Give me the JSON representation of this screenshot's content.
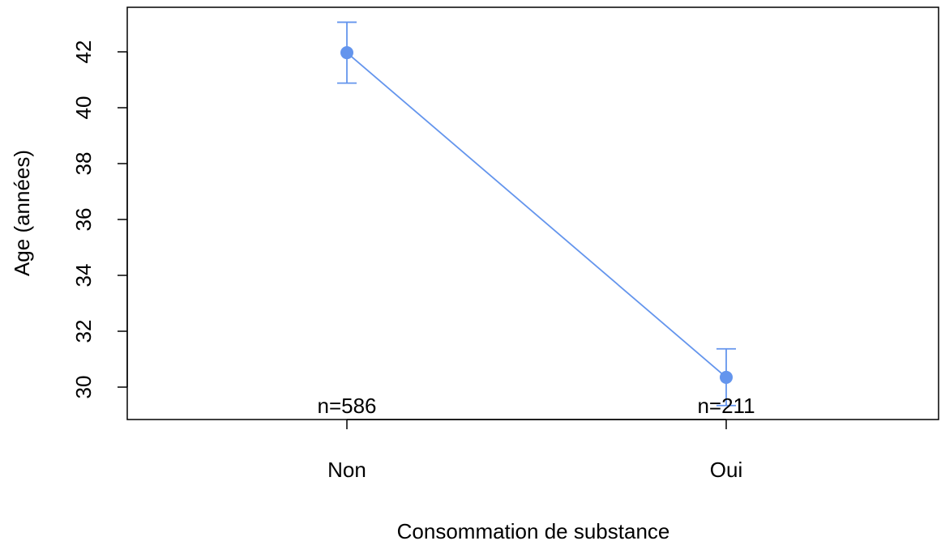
{
  "chart_data": {
    "type": "line",
    "title": "",
    "xlabel": "Consommation de substance",
    "ylabel": "Age (années)",
    "categories": [
      "Non",
      "Oui"
    ],
    "series": [
      {
        "values": [
          41.97,
          30.35
        ],
        "error_low": [
          40.88,
          29.34
        ],
        "error_high": [
          43.06,
          31.37
        ],
        "n_labels": [
          "n=586",
          "n=211"
        ]
      }
    ],
    "yticks": [
      30,
      32,
      34,
      36,
      38,
      40,
      42
    ],
    "ylim": [
      28.7,
      44.3
    ],
    "grid": false,
    "legend": "none",
    "colors": {
      "series": "#6495ED",
      "axis": "#000000"
    }
  }
}
